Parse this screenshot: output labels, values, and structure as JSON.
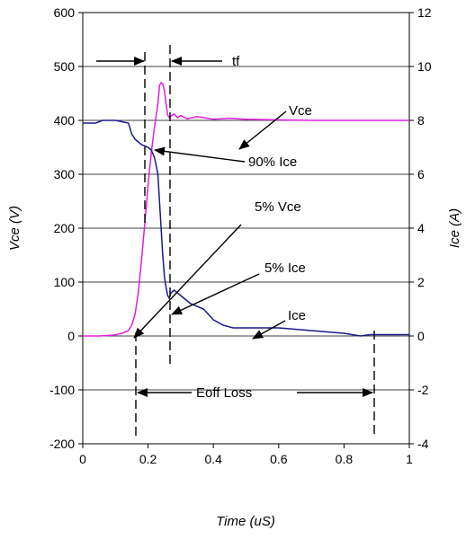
{
  "chart_data": {
    "type": "line",
    "title": "",
    "xlabel": "Time (uS)",
    "ylabel": "Vce (V)",
    "y2label": "Ice (A)",
    "xlim": [
      0,
      1
    ],
    "ylim": [
      -200,
      600
    ],
    "y2lim": [
      -4,
      12
    ],
    "xticks": [
      "0",
      "0.2",
      "0.4",
      "0.6",
      "0.8",
      "1"
    ],
    "yticks": [
      "-200",
      "-100",
      "0",
      "100",
      "200",
      "300",
      "400",
      "500",
      "600"
    ],
    "y2ticks": [
      "-4",
      "-2",
      "0",
      "2",
      "4",
      "6",
      "8",
      "10",
      "12"
    ],
    "grid": "horizontal",
    "series": [
      {
        "name": "Vce",
        "axis": "left",
        "color": "#e020e0",
        "x": [
          0,
          0.05,
          0.1,
          0.12,
          0.14,
          0.15,
          0.16,
          0.17,
          0.18,
          0.19,
          0.2,
          0.21,
          0.22,
          0.23,
          0.235,
          0.24,
          0.245,
          0.25,
          0.255,
          0.26,
          0.265,
          0.27,
          0.28,
          0.29,
          0.3,
          0.32,
          0.35,
          0.4,
          0.45,
          0.5,
          0.6,
          0.7,
          0.8,
          0.9,
          1.0
        ],
        "y": [
          0,
          0,
          2,
          5,
          10,
          20,
          40,
          80,
          140,
          210,
          280,
          340,
          390,
          430,
          465,
          470,
          468,
          455,
          430,
          410,
          405,
          408,
          412,
          405,
          409,
          403,
          407,
          402,
          404,
          402,
          401,
          400,
          400,
          400,
          400
        ]
      },
      {
        "name": "Ice",
        "axis": "right",
        "color": "#1a1a8c",
        "x": [
          0,
          0.04,
          0.06,
          0.1,
          0.14,
          0.15,
          0.16,
          0.18,
          0.2,
          0.21,
          0.22,
          0.23,
          0.235,
          0.24,
          0.245,
          0.25,
          0.255,
          0.26,
          0.265,
          0.27,
          0.28,
          0.3,
          0.33,
          0.37,
          0.4,
          0.43,
          0.46,
          0.5,
          0.6,
          0.7,
          0.8,
          0.85,
          0.88,
          0.9,
          0.95,
          1.0
        ],
        "y": [
          7.9,
          7.9,
          8.0,
          8.0,
          7.9,
          7.5,
          7.3,
          7.1,
          7.0,
          6.9,
          6.6,
          6.0,
          5.0,
          4.0,
          3.0,
          2.2,
          1.8,
          1.5,
          1.4,
          1.6,
          1.7,
          1.5,
          1.2,
          1.0,
          0.6,
          0.4,
          0.3,
          0.3,
          0.3,
          0.2,
          0.1,
          0.0,
          0.05,
          0.05,
          0.05,
          0.05
        ]
      }
    ],
    "annotations": {
      "tf": "tf",
      "vce": "Vce",
      "ice90": "90% Ice",
      "vce5": "5% Vce",
      "ice5": "5% Ice",
      "ice": "Ice",
      "eoff": "Eoff Loss"
    }
  }
}
